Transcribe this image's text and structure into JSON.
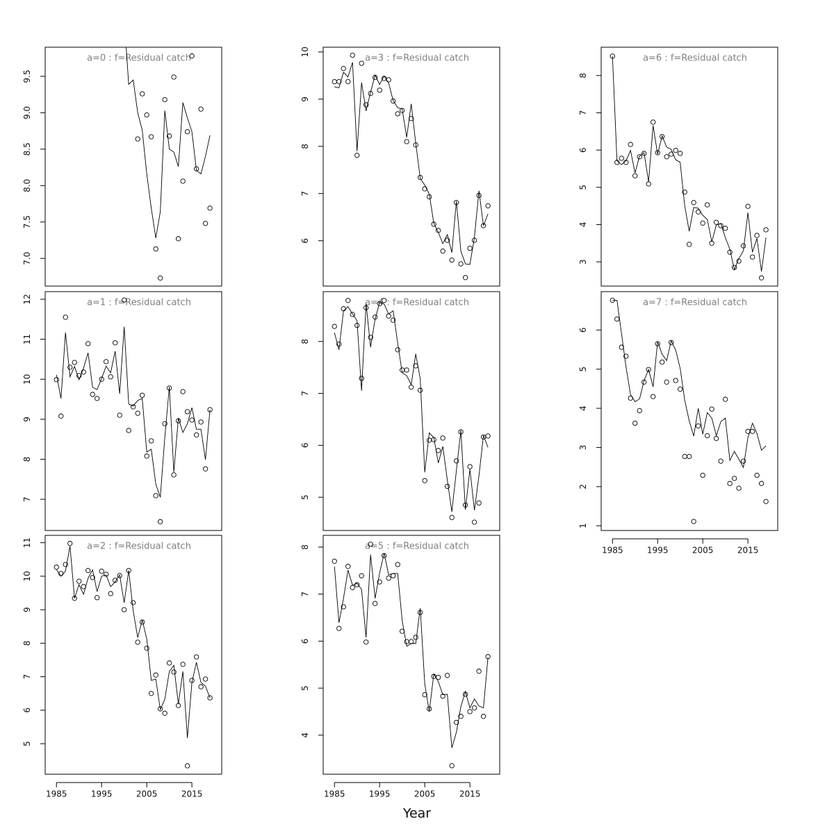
{
  "xlabel": "Year",
  "chart_data": [
    {
      "type": "line",
      "title": "a=0  :  f=Residual catch",
      "x": [
        1985,
        1986,
        1987,
        1988,
        1989,
        1990,
        1991,
        1992,
        1993,
        1994,
        1995,
        1996,
        1997,
        1998,
        1999,
        2000,
        2001,
        2002,
        2003,
        2004,
        2005,
        2006,
        2007,
        2008,
        2009,
        2010,
        2011,
        2012,
        2013,
        2014,
        2015,
        2016,
        2017,
        2018,
        2019
      ],
      "series": [
        {
          "color": "#000000",
          "marker": "circle",
          "values": [
            null,
            null,
            null,
            null,
            null,
            null,
            null,
            null,
            null,
            null,
            null,
            null,
            null,
            null,
            null,
            null,
            null,
            null,
            8.64,
            9.26,
            8.97,
            8.67,
            7.13,
            6.73,
            9.18,
            8.68,
            9.49,
            7.27,
            8.06,
            8.74,
            9.78,
            8.23,
            9.05,
            7.48,
            7.69
          ]
        },
        {
          "color": "#000000",
          "marker": "none",
          "values": [
            null,
            null,
            null,
            null,
            null,
            null,
            null,
            null,
            null,
            null,
            null,
            null,
            null,
            null,
            null,
            10.3,
            9.39,
            9.45,
            9.0,
            8.76,
            8.16,
            7.69,
            7.28,
            7.64,
            9.03,
            8.5,
            8.46,
            8.26,
            9.14,
            8.93,
            8.74,
            8.21,
            8.16,
            8.4,
            8.69
          ]
        }
      ],
      "xlim": [
        1982.5,
        2021.6
      ],
      "ylim": [
        6.62,
        9.9
      ],
      "yticks": [
        {
          "value": 7,
          "label": "7.0"
        },
        7.5,
        {
          "value": 8,
          "label": "8.0"
        },
        8.5,
        {
          "value": 9,
          "label": "9.0"
        },
        9.5
      ]
    },
    {
      "type": "line",
      "title": "a=1  :  f=Residual catch",
      "x": [
        1985,
        1986,
        1987,
        1988,
        1989,
        1990,
        1991,
        1992,
        1993,
        1994,
        1995,
        1996,
        1997,
        1998,
        1999,
        2000,
        2001,
        2002,
        2003,
        2004,
        2005,
        2006,
        2007,
        2008,
        2009,
        2010,
        2011,
        2012,
        2013,
        2014,
        2015,
        2016,
        2017,
        2018,
        2019
      ],
      "series": [
        {
          "color": "#000000",
          "marker": "circle",
          "values": [
            9.99,
            9.08,
            11.55,
            10.3,
            10.42,
            10.09,
            10.18,
            10.89,
            9.62,
            9.52,
            10.0,
            10.44,
            10.06,
            10.91,
            9.1,
            11.98,
            8.72,
            9.31,
            9.15,
            9.6,
            8.08,
            8.46,
            7.09,
            6.44,
            8.89,
            9.78,
            7.61,
            8.96,
            9.69,
            9.19,
            8.98,
            8.61,
            8.93,
            7.76,
            9.24
          ]
        },
        {
          "color": "#000000",
          "marker": "none",
          "values": [
            10.11,
            9.52,
            11.17,
            10.06,
            10.32,
            9.99,
            10.28,
            10.66,
            9.8,
            9.74,
            10.02,
            10.33,
            10.16,
            10.7,
            9.64,
            11.31,
            9.38,
            9.33,
            9.47,
            9.52,
            8.18,
            8.25,
            7.38,
            7.05,
            8.55,
            9.81,
            7.68,
            9.03,
            8.67,
            8.89,
            9.29,
            8.75,
            8.75,
            7.99,
            9.24
          ]
        }
      ],
      "xlim": [
        1982.5,
        2021.6
      ],
      "ylim": [
        6.22,
        12.19
      ],
      "yticks": [
        7,
        8,
        9,
        10,
        11,
        12
      ]
    },
    {
      "type": "line",
      "title": "a=2  :  f=Residual catch",
      "x": [
        1985,
        1986,
        1987,
        1988,
        1989,
        1990,
        1991,
        1992,
        1993,
        1994,
        1995,
        1996,
        1997,
        1998,
        1999,
        2000,
        2001,
        2002,
        2003,
        2004,
        2005,
        2006,
        2007,
        2008,
        2009,
        2010,
        2011,
        2012,
        2013,
        2014,
        2015,
        2016,
        2017,
        2018,
        2019
      ],
      "series": [
        {
          "color": "#000000",
          "marker": "circle",
          "values": [
            10.27,
            10.08,
            10.35,
            10.98,
            9.34,
            9.85,
            9.69,
            10.17,
            9.96,
            9.36,
            10.15,
            10.06,
            9.48,
            9.88,
            10.02,
            9.0,
            10.17,
            9.21,
            8.03,
            8.63,
            7.85,
            6.5,
            7.05,
            6.04,
            5.91,
            7.41,
            7.14,
            6.14,
            7.37,
            4.34,
            6.89,
            7.59,
            6.7,
            6.93,
            6.37
          ]
        },
        {
          "color": "#000000",
          "marker": "none",
          "values": [
            10.2,
            10.0,
            10.15,
            10.9,
            9.34,
            9.75,
            9.46,
            9.94,
            10.19,
            9.54,
            10.0,
            10.04,
            9.69,
            9.83,
            10.04,
            9.21,
            10.17,
            8.96,
            8.17,
            8.69,
            8.13,
            6.89,
            6.93,
            6.02,
            6.33,
            7.16,
            7.34,
            6.18,
            7.16,
            5.17,
            6.83,
            7.43,
            6.83,
            6.72,
            6.37
          ]
        }
      ],
      "xlim": [
        1982.5,
        2021.6
      ],
      "ylim": [
        4.09,
        11.22
      ],
      "yticks": [
        5,
        6,
        7,
        8,
        9,
        10,
        11
      ],
      "xticks": [
        1985,
        1995,
        2005,
        2015
      ]
    },
    {
      "type": "line",
      "title": "a=3  :  f=Residual catch",
      "x": [
        1985,
        1986,
        1987,
        1988,
        1989,
        1990,
        1991,
        1992,
        1993,
        1994,
        1995,
        1996,
        1997,
        1998,
        1999,
        2000,
        2001,
        2002,
        2003,
        2004,
        2005,
        2006,
        2007,
        2008,
        2009,
        2010,
        2011,
        2012,
        2013,
        2014,
        2015,
        2016,
        2017,
        2018,
        2019
      ],
      "series": [
        {
          "color": "#000000",
          "marker": "circle",
          "values": [
            9.37,
            9.37,
            9.65,
            9.37,
            9.93,
            7.81,
            9.76,
            8.88,
            9.12,
            9.46,
            9.19,
            9.44,
            9.41,
            8.96,
            8.69,
            8.76,
            8.1,
            8.59,
            8.03,
            7.34,
            7.1,
            6.93,
            6.35,
            6.22,
            5.78,
            6.01,
            5.59,
            6.81,
            5.51,
            5.22,
            5.84,
            6.01,
            6.96,
            6.32,
            6.74
          ]
        },
        {
          "color": "#000000",
          "marker": "none",
          "values": [
            9.26,
            9.24,
            9.57,
            9.47,
            9.78,
            7.9,
            9.35,
            8.75,
            9.15,
            9.51,
            9.31,
            9.49,
            9.34,
            8.97,
            8.82,
            8.79,
            8.19,
            8.9,
            8.07,
            7.32,
            7.18,
            6.99,
            6.37,
            6.18,
            5.94,
            6.13,
            5.75,
            6.84,
            5.78,
            5.51,
            5.5,
            6.07,
            7.06,
            6.32,
            6.57
          ]
        }
      ],
      "xlim": [
        1982.5,
        2021.6
      ],
      "ylim": [
        5.04,
        10.1
      ],
      "yticks": [
        6,
        7,
        8,
        9,
        10
      ]
    },
    {
      "type": "line",
      "title": "a=4  :  f=Residual catch",
      "x": [
        1985,
        1986,
        1987,
        1988,
        1989,
        1990,
        1991,
        1992,
        1993,
        1994,
        1995,
        1996,
        1997,
        1998,
        1999,
        2000,
        2001,
        2002,
        2003,
        2004,
        2005,
        2006,
        2007,
        2008,
        2009,
        2010,
        2011,
        2012,
        2013,
        2014,
        2015,
        2016,
        2017,
        2018,
        2019
      ],
      "series": [
        {
          "color": "#000000",
          "marker": "circle",
          "values": [
            8.29,
            7.95,
            8.63,
            8.79,
            8.52,
            8.31,
            7.29,
            8.65,
            8.08,
            8.47,
            8.73,
            8.79,
            8.49,
            8.41,
            7.84,
            7.45,
            7.45,
            7.12,
            7.53,
            7.06,
            5.32,
            6.1,
            6.11,
            5.9,
            6.14,
            5.21,
            4.61,
            5.7,
            6.26,
            4.85,
            5.59,
            4.52,
            4.89,
            6.16,
            6.18
          ]
        },
        {
          "color": "#000000",
          "marker": "none",
          "values": [
            8.17,
            7.84,
            8.59,
            8.67,
            8.53,
            8.4,
            7.05,
            8.73,
            7.89,
            8.43,
            8.75,
            8.72,
            8.53,
            8.59,
            7.97,
            7.4,
            7.34,
            7.17,
            7.76,
            7.28,
            5.48,
            6.24,
            6.15,
            5.66,
            5.98,
            5.33,
            4.72,
            5.51,
            6.29,
            4.76,
            5.54,
            4.75,
            5.41,
            6.19,
            5.96
          ]
        }
      ],
      "xlim": [
        1982.5,
        2021.6
      ],
      "ylim": [
        4.36,
        8.96
      ],
      "yticks": [
        5,
        6,
        7,
        8
      ]
    },
    {
      "type": "line",
      "title": "a=5  :  f=Residual catch",
      "x": [
        1985,
        1986,
        1987,
        1988,
        1989,
        1990,
        1991,
        1992,
        1993,
        1994,
        1995,
        1996,
        1997,
        1998,
        1999,
        2000,
        2001,
        2002,
        2003,
        2004,
        2005,
        2006,
        2007,
        2008,
        2009,
        2010,
        2011,
        2012,
        2013,
        2014,
        2015,
        2016,
        2017,
        2018,
        2019
      ],
      "series": [
        {
          "color": "#000000",
          "marker": "circle",
          "values": [
            7.7,
            6.27,
            6.73,
            7.59,
            7.14,
            7.2,
            7.39,
            5.98,
            8.06,
            6.8,
            7.26,
            7.82,
            7.34,
            7.39,
            7.63,
            6.21,
            5.99,
            5.99,
            6.08,
            6.61,
            4.86,
            4.56,
            5.25,
            5.23,
            4.83,
            5.27,
            3.35,
            4.27,
            4.4,
            4.87,
            4.5,
            4.58,
            5.36,
            4.4,
            5.67
          ]
        },
        {
          "color": "#000000",
          "marker": "none",
          "values": [
            7.59,
            6.39,
            6.91,
            7.51,
            7.19,
            7.23,
            7.1,
            6.08,
            7.84,
            6.91,
            7.45,
            7.87,
            7.41,
            7.44,
            7.44,
            6.44,
            5.89,
            5.95,
            5.95,
            6.7,
            5.09,
            4.5,
            5.3,
            5.14,
            4.86,
            4.87,
            3.73,
            4.06,
            4.61,
            4.93,
            4.58,
            4.77,
            4.62,
            4.58,
            5.65
          ]
        }
      ],
      "xlim": [
        1982.5,
        2021.6
      ],
      "ylim": [
        3.17,
        8.25
      ],
      "yticks": [
        4,
        5,
        6,
        7,
        8
      ],
      "xticks": [
        1985,
        1995,
        2005,
        2015
      ]
    },
    {
      "type": "line",
      "title": "a=6  :  f=Residual catch",
      "x": [
        1985,
        1986,
        1987,
        1988,
        1989,
        1990,
        1991,
        1992,
        1993,
        1994,
        1995,
        1996,
        1997,
        1998,
        1999,
        2000,
        2001,
        2002,
        2003,
        2004,
        2005,
        2006,
        2007,
        2008,
        2009,
        2010,
        2011,
        2012,
        2013,
        2014,
        2015,
        2016,
        2017,
        2018,
        2019
      ],
      "series": [
        {
          "color": "#000000",
          "marker": "circle",
          "values": [
            8.52,
            5.67,
            5.78,
            5.67,
            6.15,
            5.31,
            5.82,
            5.91,
            5.09,
            6.75,
            5.93,
            6.36,
            5.82,
            5.89,
            5.99,
            5.91,
            4.87,
            3.47,
            4.59,
            4.34,
            4.04,
            4.53,
            3.5,
            4.06,
            3.97,
            3.9,
            3.26,
            2.85,
            3.02,
            3.43,
            4.49,
            3.13,
            3.71,
            2.57,
            3.86
          ]
        },
        {
          "color": "#000000",
          "marker": "none",
          "values": [
            8.52,
            5.71,
            5.61,
            5.71,
            5.99,
            5.39,
            5.84,
            5.93,
            5.15,
            6.66,
            5.89,
            6.38,
            6.08,
            6.02,
            5.74,
            5.67,
            4.51,
            3.82,
            4.46,
            4.44,
            4.25,
            4.14,
            3.54,
            3.99,
            4.03,
            3.65,
            3.34,
            2.79,
            3.09,
            3.3,
            4.32,
            3.26,
            3.63,
            2.74,
            3.65
          ]
        }
      ],
      "xlim": [
        1982.5,
        2021.6
      ],
      "ylim": [
        2.35,
        8.76
      ],
      "yticks": [
        3,
        4,
        5,
        6,
        7,
        8
      ]
    },
    {
      "type": "line",
      "title": "a=7  :  f=Residual catch",
      "x": [
        1985,
        1986,
        1987,
        1988,
        1989,
        1990,
        1991,
        1992,
        1993,
        1994,
        1995,
        1996,
        1997,
        1998,
        1999,
        2000,
        2001,
        2002,
        2003,
        2004,
        2005,
        2006,
        2007,
        2008,
        2009,
        2010,
        2011,
        2012,
        2013,
        2014,
        2015,
        2016,
        2017,
        2018,
        2019
      ],
      "series": [
        {
          "color": "#000000",
          "marker": "circle",
          "values": [
            6.76,
            6.28,
            5.56,
            5.33,
            4.26,
            3.62,
            3.94,
            4.67,
            4.99,
            4.3,
            5.65,
            5.18,
            4.67,
            5.68,
            4.71,
            4.49,
            2.77,
            2.77,
            1.11,
            3.55,
            2.29,
            3.3,
            3.98,
            3.23,
            2.65,
            4.23,
            2.08,
            2.21,
            1.96,
            2.65,
            3.41,
            3.41,
            2.29,
            2.08,
            1.62
          ]
        },
        {
          "color": "#000000",
          "marker": "none",
          "values": [
            6.76,
            6.76,
            5.91,
            5.06,
            4.35,
            4.17,
            4.24,
            4.71,
            4.99,
            4.55,
            5.7,
            5.38,
            5.22,
            5.72,
            5.49,
            5.02,
            4.21,
            3.68,
            3.29,
            4.0,
            3.34,
            3.89,
            3.75,
            3.3,
            3.66,
            3.75,
            2.67,
            2.9,
            2.7,
            2.49,
            3.25,
            3.62,
            3.36,
            2.93,
            3.04
          ]
        }
      ],
      "xlim": [
        1982.5,
        2021.6
      ],
      "ylim": [
        0.88,
        6.98
      ],
      "yticks": [
        1,
        2,
        3,
        4,
        5,
        6
      ],
      "xticks": [
        1985,
        1995,
        2005,
        2015
      ]
    }
  ]
}
